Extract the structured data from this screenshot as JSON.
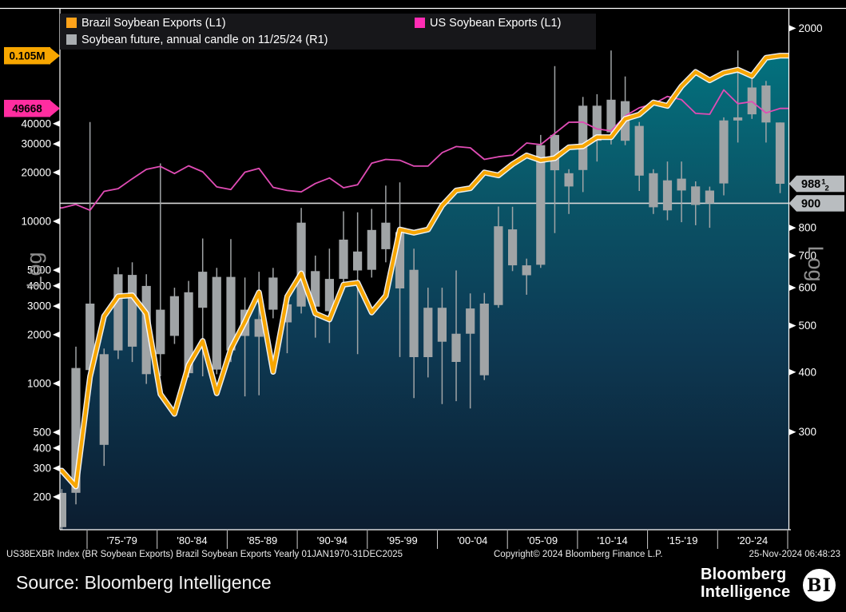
{
  "legend": {
    "items": [
      {
        "label": "Brazil Soybean Exports (L1)",
        "swatch": "#ffa31a"
      },
      {
        "label": "US Soybean Exports (L1)",
        "swatch": "#ff2db4"
      },
      {
        "label": "Soybean future, annual candle on 11/25/24 (R1)",
        "swatch": "#a9adb0"
      }
    ]
  },
  "badges": {
    "brazil_last": {
      "text": "0.105M",
      "bg": "#f7a600"
    },
    "us_last": {
      "text": "49668",
      "bg": "#ff2da0"
    },
    "future_close": {
      "main": "988",
      "num": "1",
      "den": "2",
      "bg": "#b9bdc0"
    },
    "ref_line": {
      "text": "900",
      "bg": "#b9bdc0"
    }
  },
  "axes": {
    "left": {
      "title": "Log",
      "ticks": [
        200,
        300,
        400,
        500,
        1000,
        2000,
        3000,
        4000,
        5000,
        10000,
        20000,
        30000,
        40000
      ]
    },
    "right": {
      "title": "Log",
      "ticks": [
        300,
        400,
        500,
        600,
        700,
        800,
        2000
      ]
    },
    "x": {
      "labels": [
        "'75-'79",
        "'80-'84",
        "'85-'89",
        "'90-'94",
        "'95-'99",
        "'00-'04",
        "'05-'09",
        "'10-'14",
        "'15-'19",
        "'20-'24"
      ]
    }
  },
  "footer": {
    "instrument": "US38EXBR Index (BR Soybean Exports) Brazil Soybean Exports  Yearly 01JAN1970-31DEC2025",
    "copyright": "Copyright© 2024 Bloomberg Finance L.P.",
    "timestamp": "25-Nov-2024 06:48:23"
  },
  "bottom_bar": {
    "source": "Source: Bloomberg Intelligence",
    "brand_top": "Bloomberg",
    "brand_bottom": "Intelligence",
    "badge": "BI"
  },
  "chart_data": {
    "type": [
      "area",
      "line",
      "candlestick"
    ],
    "x_years": [
      1973,
      1974,
      1975,
      1976,
      1977,
      1978,
      1979,
      1980,
      1981,
      1982,
      1983,
      1984,
      1985,
      1986,
      1987,
      1988,
      1989,
      1990,
      1991,
      1992,
      1993,
      1994,
      1995,
      1996,
      1997,
      1998,
      1999,
      2000,
      2001,
      2002,
      2003,
      2004,
      2005,
      2006,
      2007,
      2008,
      2009,
      2010,
      2011,
      2012,
      2013,
      2014,
      2015,
      2016,
      2017,
      2018,
      2019,
      2020,
      2021,
      2022,
      2023,
      2024
    ],
    "left_axis": {
      "scale": "log",
      "range_hint": [
        200,
        110000
      ]
    },
    "right_axis": {
      "scale": "log",
      "range_hint": [
        180,
        2100
      ],
      "ref_line": 900
    },
    "last_values": {
      "brazil": "0.105M",
      "us": 49668,
      "future": 988.5
    },
    "series": [
      {
        "name": "Brazil Soybean Exports",
        "axis": "L1",
        "type": "area-line",
        "color": "#f7a600",
        "values": [
          290,
          232,
          1100,
          2600,
          3450,
          3500,
          2700,
          860,
          650,
          1300,
          1830,
          870,
          1630,
          2400,
          3650,
          1180,
          3430,
          4775,
          2700,
          2480,
          4070,
          4180,
          2740,
          3480,
          8900,
          8500,
          8900,
          12500,
          15500,
          16000,
          20000,
          19200,
          22500,
          25500,
          23800,
          24500,
          28600,
          29000,
          33000,
          33000,
          42800,
          45500,
          54000,
          51500,
          68000,
          83300,
          74000,
          82300,
          86100,
          78700,
          102000,
          105000
        ]
      },
      {
        "name": "US Soybean Exports",
        "axis": "L1",
        "type": "line",
        "color": "#e04cb5",
        "values": [
          12100,
          12700,
          11700,
          15300,
          15900,
          18300,
          20900,
          21800,
          19700,
          22000,
          20200,
          16300,
          15700,
          20100,
          21200,
          16200,
          15500,
          15200,
          17100,
          18500,
          16100,
          16800,
          22800,
          24100,
          23800,
          21900,
          21900,
          26500,
          28900,
          28400,
          24100,
          25000,
          25600,
          30400,
          29700,
          34800,
          40800,
          40900,
          37100,
          36100,
          44600,
          50100,
          52900,
          58900,
          56200,
          46300,
          45700,
          64600,
          53100,
          54700,
          46600,
          49668
        ]
      },
      {
        "name": "Soybean future, annual candle on 11/25/24",
        "axis": "R1",
        "type": "candle",
        "color": "#a0a4a6",
        "ohlc_loch": [
          [
            184,
            190,
            224,
            228
          ],
          [
            212,
            224,
            408,
            452
          ],
          [
            392,
            404,
            556,
            1330
          ],
          [
            255,
            436,
            282,
            448
          ],
          [
            426,
            444,
            640,
            662
          ],
          [
            420,
            638,
            452,
            678
          ],
          [
            378,
            396,
            605,
            640
          ],
          [
            392,
            436,
            540,
            1090
          ],
          [
            458,
            476,
            576,
            600
          ],
          [
            390,
            587,
            398,
            620
          ],
          [
            392,
            545,
            648,
            760
          ],
          [
            396,
            632,
            405,
            660
          ],
          [
            420,
            444,
            632,
            758
          ],
          [
            356,
            540,
            476,
            630
          ],
          [
            358,
            474,
            516,
            648
          ],
          [
            518,
            540,
            630,
            660
          ],
          [
            438,
            508,
            554,
            580
          ],
          [
            530,
            548,
            820,
            880
          ],
          [
            472,
            650,
            548,
            700
          ],
          [
            460,
            536,
            626,
            724
          ],
          [
            600,
            626,
            756,
            866
          ],
          [
            436,
            714,
            652,
            862
          ],
          [
            630,
            654,
            792,
            876
          ],
          [
            678,
            722,
            820,
            980
          ],
          [
            430,
            784,
            598,
            995
          ],
          [
            353,
            654,
            430,
            724
          ],
          [
            390,
            430,
            545,
            600
          ],
          [
            343,
            545,
            463,
            600
          ],
          [
            348,
            420,
            481,
            652
          ],
          [
            336,
            481,
            543,
            584
          ],
          [
            385,
            394,
            556,
            585
          ],
          [
            545,
            552,
            806,
            886
          ],
          [
            650,
            668,
            794,
            885
          ],
          [
            580,
            668,
            637,
            690
          ],
          [
            660,
            670,
            1190,
            1250
          ],
          [
            780,
            1055,
            1250,
            1740
          ],
          [
            855,
            976,
            1040,
            1060
          ],
          [
            950,
            1056,
            1438,
            1500
          ],
          [
            1100,
            1438,
            1215,
            1520
          ],
          [
            1194,
            1265,
            1480,
            1875
          ],
          [
            1190,
            1470,
            1215,
            1655
          ],
          [
            955,
            1305,
            1028,
            1330
          ],
          [
            855,
            1040,
            883,
            1060
          ],
          [
            830,
            870,
            1005,
            1100
          ],
          [
            822,
            1013,
            957,
            1100
          ],
          [
            810,
            976,
            893,
            1000
          ],
          [
            800,
            957,
            900,
            975
          ],
          [
            935,
            990,
            1340,
            1360
          ],
          [
            1205,
            1340,
            1360,
            1875
          ],
          [
            1350,
            1380,
            1570,
            1670
          ],
          [
            1205,
            1585,
            1327,
            1620
          ],
          [
            945,
            1327,
            988.5,
            1327
          ]
        ]
      }
    ]
  }
}
